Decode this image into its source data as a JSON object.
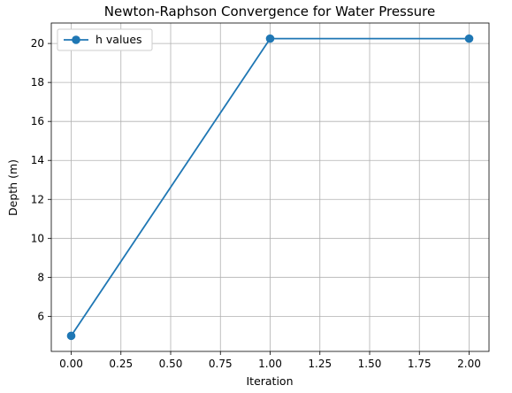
{
  "chart_data": {
    "type": "line",
    "title": "Newton-Raphson Convergence for Water Pressure",
    "xlabel": "Iteration",
    "ylabel": "Depth (m)",
    "x": [
      0,
      1,
      2
    ],
    "series": [
      {
        "name": "h values",
        "values": [
          5.0,
          20.25,
          20.25
        ],
        "color": "#1f77b4",
        "marker": "circle"
      }
    ],
    "xlim": [
      -0.1,
      2.1
    ],
    "ylim": [
      4.2,
      21.05
    ],
    "xticks": [
      0.0,
      0.25,
      0.5,
      0.75,
      1.0,
      1.25,
      1.5,
      1.75,
      2.0
    ],
    "xtick_labels": [
      "0.00",
      "0.25",
      "0.50",
      "0.75",
      "1.00",
      "1.25",
      "1.50",
      "1.75",
      "2.00"
    ],
    "yticks": [
      6,
      8,
      10,
      12,
      14,
      16,
      18,
      20
    ],
    "ytick_labels": [
      "6",
      "8",
      "10",
      "12",
      "14",
      "16",
      "18",
      "20"
    ],
    "grid": true,
    "legend_position": "upper-left"
  }
}
